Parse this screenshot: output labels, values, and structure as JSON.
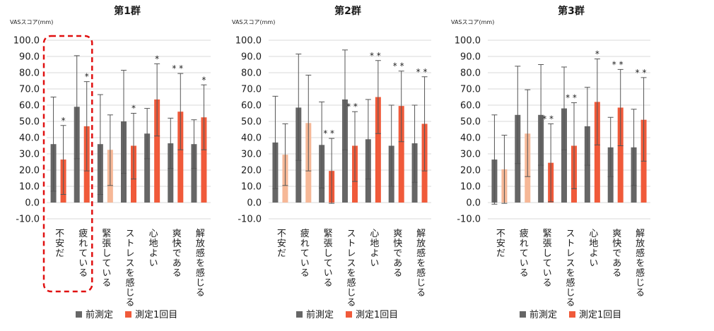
{
  "chart_data": [
    {
      "type": "bar",
      "title": "第1群",
      "ylabel": "VASスコア(mm)",
      "ylim": [
        -10,
        100
      ],
      "yticks": [
        "100.0",
        "90.0",
        "80.0",
        "70.0",
        "60.0",
        "50.0",
        "40.0",
        "30.0",
        "20.0",
        "10.0",
        "0.0",
        "-10.0"
      ],
      "categories": [
        "不安だ",
        "疲れている",
        "緊張している",
        "ストレスを感じる",
        "心地よい",
        "爽快である",
        "解放感を感じる"
      ],
      "series": [
        {
          "name": "前測定",
          "values": [
            36,
            59,
            36,
            50,
            42.5,
            36.5,
            36
          ],
          "err_high": [
            65,
            90.5,
            66.5,
            81.5,
            58,
            52,
            51
          ],
          "err_low": [
            7,
            27,
            5,
            18,
            27,
            21,
            21
          ]
        },
        {
          "name": "測定1回目",
          "values": [
            26.5,
            47,
            32.5,
            35,
            63.5,
            56,
            52.5
          ],
          "err_high": [
            47.5,
            74.5,
            54,
            55,
            85.5,
            79.5,
            72.5
          ],
          "err_low": [
            5,
            19.5,
            10.5,
            14.5,
            41,
            32.5,
            32.5
          ]
        }
      ],
      "light": [
        false,
        false,
        true,
        false,
        false,
        false,
        false
      ],
      "stars": [
        "*",
        "*",
        "",
        "*",
        "*",
        "**",
        "*"
      ],
      "highlight_category": 0,
      "legend": [
        "前測定",
        "測定1回目"
      ]
    },
    {
      "type": "bar",
      "title": "第2群",
      "ylabel": "VASスコア(mm)",
      "ylim": [
        -10,
        100
      ],
      "yticks": [
        "100.0",
        "90.0",
        "80.0",
        "70.0",
        "60.0",
        "50.0",
        "40.0",
        "30.0",
        "20.0",
        "10.0",
        "0.0",
        "-10.0"
      ],
      "categories": [
        "不安だ",
        "疲れている",
        "緊張している",
        "ストレスを感じる",
        "心地よい",
        "爽快である",
        "解放感を感じる"
      ],
      "series": [
        {
          "name": "前測定",
          "values": [
            37,
            58.5,
            35.5,
            63.5,
            39,
            35,
            36.5
          ],
          "err_high": [
            65.5,
            91.5,
            62,
            94,
            63.5,
            60,
            60
          ],
          "err_low": [
            8.5,
            26,
            9,
            32.5,
            14.5,
            10,
            12.5
          ]
        },
        {
          "name": "測定1回目",
          "values": [
            29.5,
            49,
            19.5,
            35,
            65,
            59.5,
            48.5
          ],
          "err_high": [
            48.5,
            78.5,
            39.5,
            56,
            87.5,
            81,
            77.5
          ],
          "err_low": [
            10.5,
            19.5,
            -0.5,
            13,
            42.5,
            37.5,
            19.5
          ]
        }
      ],
      "light": [
        true,
        true,
        false,
        false,
        false,
        false,
        false
      ],
      "stars": [
        "",
        "",
        "**",
        "**",
        "**",
        "**",
        "**"
      ],
      "highlight_category": null,
      "legend": [
        "前測定",
        "測定1回目"
      ]
    },
    {
      "type": "bar",
      "title": "第3群",
      "ylabel": "VASスコア(mm)",
      "ylim": [
        -10,
        100
      ],
      "yticks": [
        "100.0",
        "90.0",
        "80.0",
        "70.0",
        "60.0",
        "50.0",
        "40.0",
        "30.0",
        "20.0",
        "10.0",
        "0.0",
        "-10.0"
      ],
      "categories": [
        "不安だ",
        "疲れている",
        "緊張している",
        "ストレスを感じる",
        "心地よい",
        "爽快である",
        "解放感を感じる"
      ],
      "series": [
        {
          "name": "前測定",
          "values": [
            26.5,
            54,
            54,
            58,
            47,
            34,
            34
          ],
          "err_high": [
            54,
            84,
            85,
            83.5,
            71,
            52.5,
            57.5
          ],
          "err_low": [
            -1,
            24,
            23,
            32.5,
            23,
            16,
            10.5
          ]
        },
        {
          "name": "測定1回目",
          "values": [
            20.5,
            42.5,
            24.5,
            35,
            62,
            58.5,
            51
          ],
          "err_high": [
            41.5,
            69.5,
            48.5,
            61.5,
            88.5,
            82,
            77
          ],
          "err_low": [
            -0.5,
            16,
            0.5,
            8.5,
            35.5,
            35,
            25.5
          ]
        }
      ],
      "light": [
        true,
        true,
        false,
        false,
        false,
        false,
        false
      ],
      "stars": [
        "",
        "",
        "**",
        "**",
        "*",
        "**",
        "**"
      ],
      "highlight_category": null,
      "legend": [
        "前測定",
        "測定1回目"
      ]
    }
  ],
  "colors": {
    "pre": "#666666",
    "post": "#f05a3a",
    "post_light": "#f6b897",
    "grid": "#d9d9d9",
    "highlight": "#e01010"
  }
}
